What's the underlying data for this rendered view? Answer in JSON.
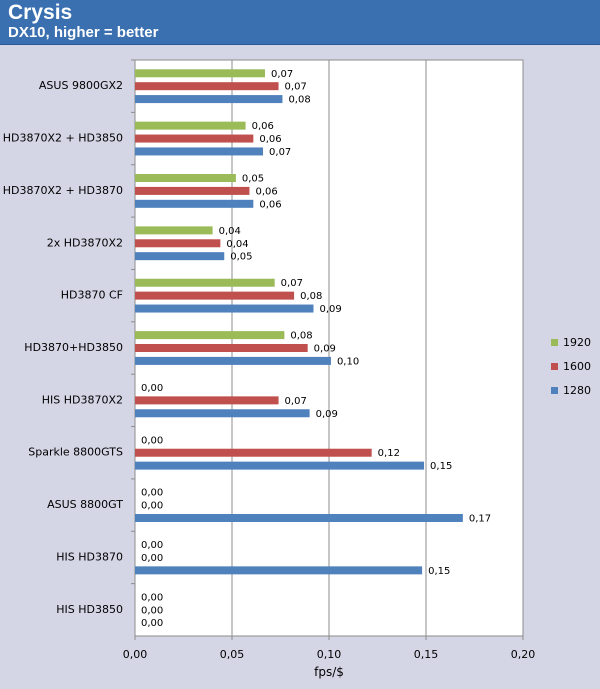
{
  "title": "Crysis",
  "subtitle": "DX10, higher = better",
  "colors": {
    "header_bg": "#3a6fb0",
    "page_bg": "#d4d6e6",
    "plot_bg": "#ffffff"
  },
  "chart_data": {
    "type": "bar",
    "orientation": "horizontal",
    "title": "Crysis",
    "subtitle": "DX10, higher = better",
    "xlabel": "fps/$",
    "ylabel": "",
    "xlim": [
      0,
      0.2
    ],
    "xticks": [
      "0,00",
      "0,05",
      "0,10",
      "0,15",
      "0,20"
    ],
    "grid": true,
    "legend_position": "right",
    "categories": [
      "ASUS 9800GX2",
      "HD3870X2 + HD3850",
      "HD3870X2 + HD3870",
      "2x HD3870X2",
      "HD3870 CF",
      "HD3870+HD3850",
      "HIS HD3870X2",
      "Sparkle 8800GTS",
      "ASUS 8800GT",
      "HIS HD3870",
      "HIS HD3850"
    ],
    "series": [
      {
        "name": "1920",
        "color": "#9bbb59",
        "values": [
          0.067,
          0.057,
          0.052,
          0.04,
          0.072,
          0.077,
          0,
          0,
          0,
          0,
          0
        ],
        "labels": [
          "0,07",
          "0,06",
          "0,05",
          "0,04",
          "0,07",
          "0,08",
          "0,00",
          "0,00",
          "0,00",
          "0,00",
          "0,00"
        ]
      },
      {
        "name": "1600",
        "color": "#c0504d",
        "values": [
          0.074,
          0.061,
          0.059,
          0.044,
          0.082,
          0.089,
          0.074,
          0.122,
          0,
          0,
          0
        ],
        "labels": [
          "0,07",
          "0,06",
          "0,06",
          "0,04",
          "0,08",
          "0,09",
          "0,07",
          "0,12",
          "0,00",
          "0,00",
          "0,00"
        ]
      },
      {
        "name": "1280",
        "color": "#4f81bd",
        "values": [
          0.076,
          0.066,
          0.061,
          0.046,
          0.092,
          0.101,
          0.09,
          0.149,
          0.169,
          0.148,
          0
        ],
        "labels": [
          "0,08",
          "0,07",
          "0,06",
          "0,05",
          "0,09",
          "0,10",
          "0,09",
          "0,15",
          "0,17",
          "0,15",
          "0,00"
        ]
      }
    ]
  }
}
